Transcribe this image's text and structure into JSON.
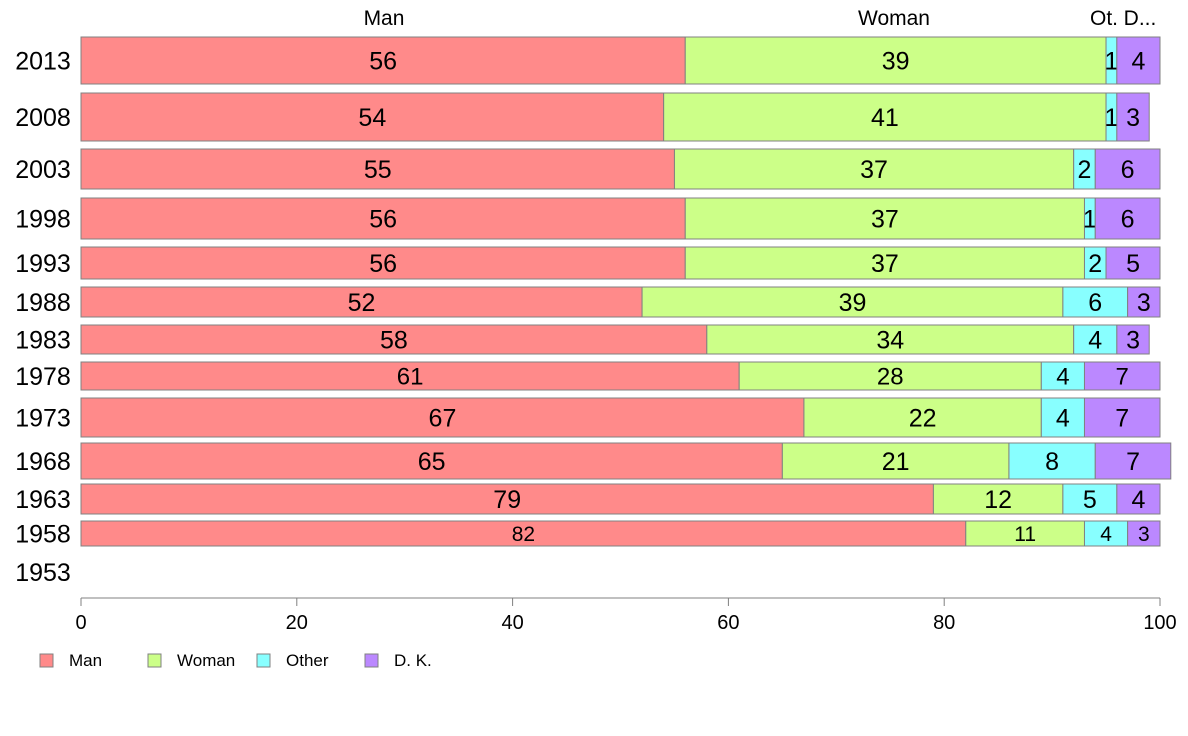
{
  "chart_data": {
    "type": "bar",
    "orientation": "horizontal",
    "stacked": true,
    "categories": [
      "2013",
      "2008",
      "2003",
      "1998",
      "1993",
      "1988",
      "1983",
      "1978",
      "1973",
      "1968",
      "1963",
      "1958",
      "1953"
    ],
    "series": [
      {
        "name": "Man",
        "color": "#ff8a8a",
        "values": [
          56,
          54,
          55,
          56,
          56,
          52,
          58,
          61,
          67,
          65,
          79,
          82,
          null
        ]
      },
      {
        "name": "Woman",
        "color": "#ccff88",
        "values": [
          39,
          41,
          37,
          37,
          37,
          39,
          34,
          28,
          22,
          21,
          12,
          11,
          null
        ]
      },
      {
        "name": "Other",
        "color": "#88ffff",
        "values": [
          1,
          1,
          2,
          1,
          2,
          6,
          4,
          4,
          4,
          8,
          5,
          4,
          null
        ]
      },
      {
        "name": "D. K.",
        "color": "#bb88ff",
        "values": [
          4,
          3,
          6,
          6,
          5,
          3,
          3,
          7,
          7,
          7,
          4,
          3,
          null
        ]
      }
    ],
    "top_labels": [
      "Man",
      "Woman",
      "Ot.",
      "D..."
    ],
    "xlim": [
      0,
      100
    ],
    "xticks": [
      0,
      20,
      40,
      60,
      80,
      100
    ],
    "legend_position": "bottom-left",
    "grid": false
  }
}
